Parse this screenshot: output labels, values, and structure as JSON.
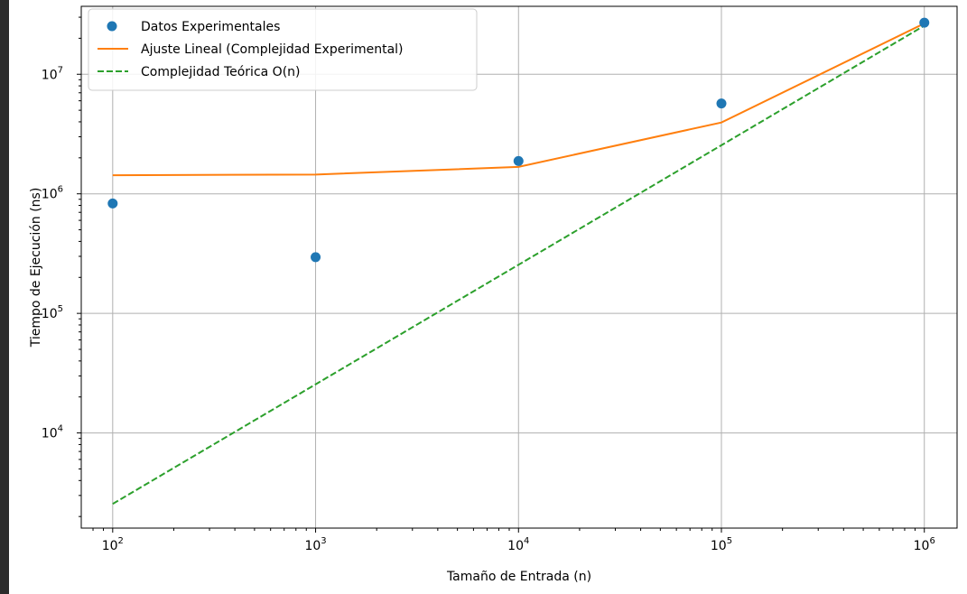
{
  "chart_data": {
    "type": "scatter",
    "title": "",
    "xlabel": "Tamaño de Entrada (n)",
    "ylabel": "Tiempo de Ejecución (ns)",
    "xscale": "log",
    "yscale": "log",
    "xlim": [
      70,
      1450000
    ],
    "ylim": [
      1600,
      37000000
    ],
    "grid": true,
    "legend_position": "top-left",
    "x_ticks": [
      {
        "base": "10",
        "exp": "2",
        "value": 100
      },
      {
        "base": "10",
        "exp": "3",
        "value": 1000
      },
      {
        "base": "10",
        "exp": "4",
        "value": 10000
      },
      {
        "base": "10",
        "exp": "5",
        "value": 100000
      },
      {
        "base": "10",
        "exp": "6",
        "value": 1000000
      }
    ],
    "y_ticks": [
      {
        "base": "10",
        "exp": "4",
        "value": 10000
      },
      {
        "base": "10",
        "exp": "5",
        "value": 100000
      },
      {
        "base": "10",
        "exp": "6",
        "value": 1000000
      },
      {
        "base": "10",
        "exp": "7",
        "value": 10000000
      }
    ],
    "x": [
      100,
      1000,
      10000,
      100000,
      1000000
    ],
    "series": [
      {
        "name": "Datos Experimentales",
        "kind": "scatter",
        "color": "#1f77b4",
        "values": [
          830000,
          295000,
          1880000,
          5700000,
          27000000
        ]
      },
      {
        "name": "Ajuste Lineal (Complejidad Experimental)",
        "kind": "line",
        "color": "#ff7f0e",
        "dash": "solid",
        "values": [
          1430000,
          1450000,
          1680000,
          3950000,
          26600000
        ]
      },
      {
        "name": "Complejidad Teórica O(n)",
        "kind": "line",
        "color": "#2ca02c",
        "dash": "dashed",
        "values": [
          2550,
          25500,
          255000,
          2550000,
          25500000
        ]
      }
    ]
  }
}
